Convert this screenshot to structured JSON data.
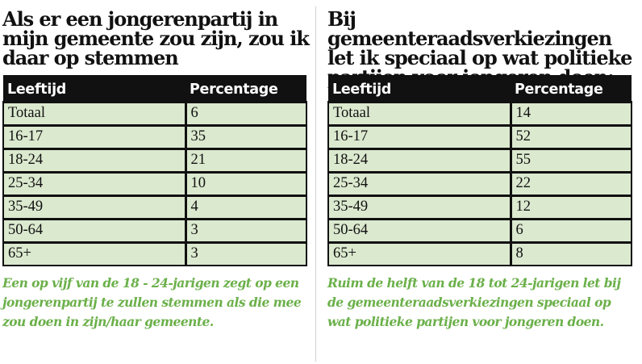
{
  "colors": {
    "header_bg": "#111111",
    "cell_bg": "#dbe9cf",
    "caption": "#6bb04a",
    "divider": "#cfcfcf"
  },
  "left": {
    "title": "Als er een jongerenpartij in mijn gemeente zou zijn, zou ik daar op stemmen",
    "columns": [
      "Leeftijd",
      "Percentage"
    ],
    "rows": [
      [
        "Totaal",
        "6"
      ],
      [
        "16-17",
        "35"
      ],
      [
        "18-24",
        "21"
      ],
      [
        "25-34",
        "10"
      ],
      [
        "35-49",
        "4"
      ],
      [
        "50-64",
        "3"
      ],
      [
        "65+",
        "3"
      ]
    ],
    "caption": "Een op vijf van de 18 - 24-jarigen zegt op een jongerenpartij te zullen stemmen als die mee zou doen in zijn/haar gemeente."
  },
  "right": {
    "title": "Bij gemeenteraadsverkiezingen let ik speciaal op wat politieke partijen voor jongeren doen:",
    "columns": [
      "Leeftijd",
      "Percentage"
    ],
    "rows": [
      [
        "Totaal",
        "14"
      ],
      [
        "16-17",
        "52"
      ],
      [
        "18-24",
        "55"
      ],
      [
        "25-34",
        "22"
      ],
      [
        "35-49",
        "12"
      ],
      [
        "50-64",
        "6"
      ],
      [
        "65+",
        "8"
      ]
    ],
    "caption": "Ruim de helft van de 18 tot 24-jarigen let bij de gemeenteraadsverkiezingen speciaal op wat politieke partijen voor jongeren doen."
  }
}
